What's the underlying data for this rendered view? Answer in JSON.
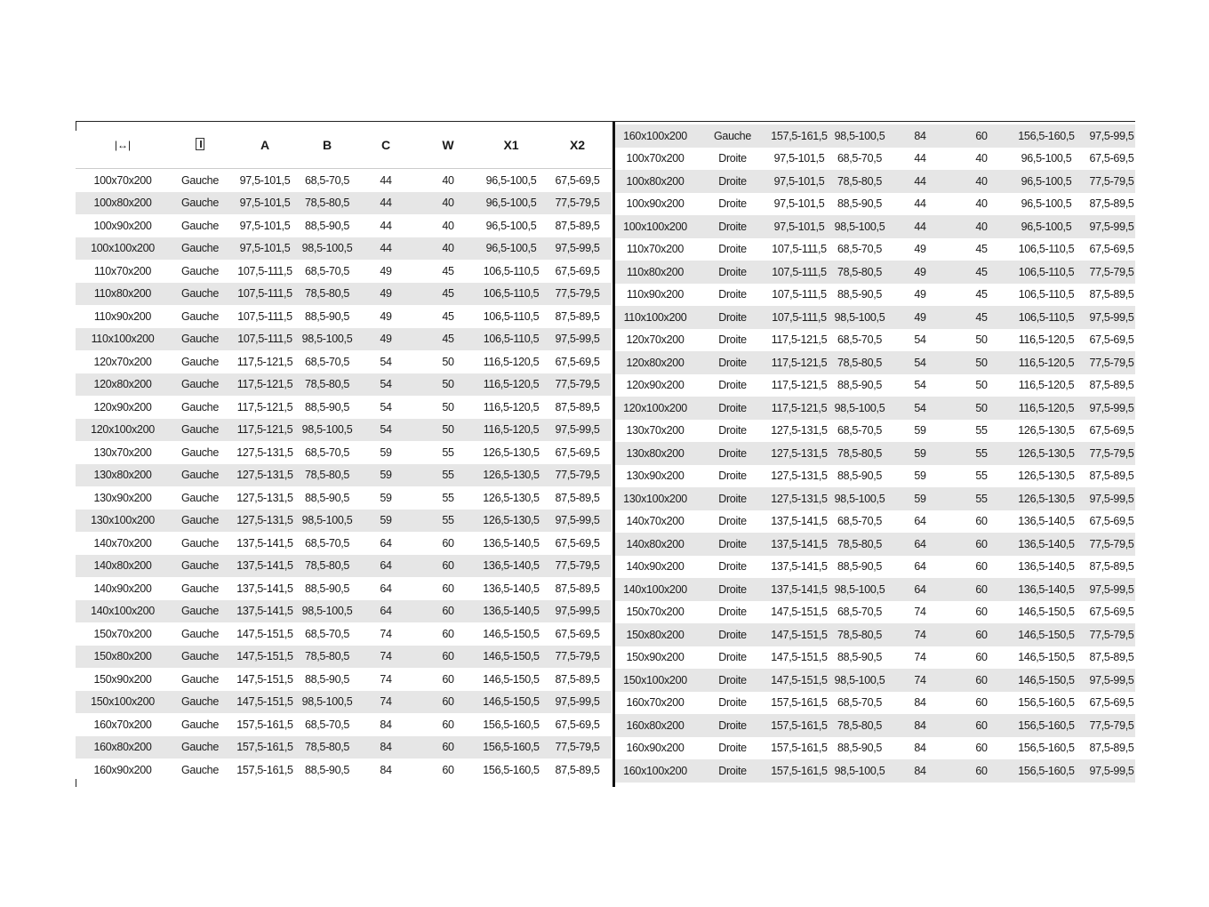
{
  "header": {
    "width_icon": "width-arrows-icon",
    "door_icon": "door-icon",
    "cols": [
      "A",
      "B",
      "C",
      "W",
      "X1",
      "X2"
    ]
  },
  "left_rows": [
    [
      "100x70x200",
      "Gauche",
      "97,5-101,5",
      "68,5-70,5",
      "44",
      "40",
      "96,5-100,5",
      "67,5-69,5"
    ],
    [
      "100x80x200",
      "Gauche",
      "97,5-101,5",
      "78,5-80,5",
      "44",
      "40",
      "96,5-100,5",
      "77,5-79,5"
    ],
    [
      "100x90x200",
      "Gauche",
      "97,5-101,5",
      "88,5-90,5",
      "44",
      "40",
      "96,5-100,5",
      "87,5-89,5"
    ],
    [
      "100x100x200",
      "Gauche",
      "97,5-101,5",
      "98,5-100,5",
      "44",
      "40",
      "96,5-100,5",
      "97,5-99,5"
    ],
    [
      "110x70x200",
      "Gauche",
      "107,5-111,5",
      "68,5-70,5",
      "49",
      "45",
      "106,5-110,5",
      "67,5-69,5"
    ],
    [
      "110x80x200",
      "Gauche",
      "107,5-111,5",
      "78,5-80,5",
      "49",
      "45",
      "106,5-110,5",
      "77,5-79,5"
    ],
    [
      "110x90x200",
      "Gauche",
      "107,5-111,5",
      "88,5-90,5",
      "49",
      "45",
      "106,5-110,5",
      "87,5-89,5"
    ],
    [
      "110x100x200",
      "Gauche",
      "107,5-111,5",
      "98,5-100,5",
      "49",
      "45",
      "106,5-110,5",
      "97,5-99,5"
    ],
    [
      "120x70x200",
      "Gauche",
      "117,5-121,5",
      "68,5-70,5",
      "54",
      "50",
      "116,5-120,5",
      "67,5-69,5"
    ],
    [
      "120x80x200",
      "Gauche",
      "117,5-121,5",
      "78,5-80,5",
      "54",
      "50",
      "116,5-120,5",
      "77,5-79,5"
    ],
    [
      "120x90x200",
      "Gauche",
      "117,5-121,5",
      "88,5-90,5",
      "54",
      "50",
      "116,5-120,5",
      "87,5-89,5"
    ],
    [
      "120x100x200",
      "Gauche",
      "117,5-121,5",
      "98,5-100,5",
      "54",
      "50",
      "116,5-120,5",
      "97,5-99,5"
    ],
    [
      "130x70x200",
      "Gauche",
      "127,5-131,5",
      "68,5-70,5",
      "59",
      "55",
      "126,5-130,5",
      "67,5-69,5"
    ],
    [
      "130x80x200",
      "Gauche",
      "127,5-131,5",
      "78,5-80,5",
      "59",
      "55",
      "126,5-130,5",
      "77,5-79,5"
    ],
    [
      "130x90x200",
      "Gauche",
      "127,5-131,5",
      "88,5-90,5",
      "59",
      "55",
      "126,5-130,5",
      "87,5-89,5"
    ],
    [
      "130x100x200",
      "Gauche",
      "127,5-131,5",
      "98,5-100,5",
      "59",
      "55",
      "126,5-130,5",
      "97,5-99,5"
    ],
    [
      "140x70x200",
      "Gauche",
      "137,5-141,5",
      "68,5-70,5",
      "64",
      "60",
      "136,5-140,5",
      "67,5-69,5"
    ],
    [
      "140x80x200",
      "Gauche",
      "137,5-141,5",
      "78,5-80,5",
      "64",
      "60",
      "136,5-140,5",
      "77,5-79,5"
    ],
    [
      "140x90x200",
      "Gauche",
      "137,5-141,5",
      "88,5-90,5",
      "64",
      "60",
      "136,5-140,5",
      "87,5-89,5"
    ],
    [
      "140x100x200",
      "Gauche",
      "137,5-141,5",
      "98,5-100,5",
      "64",
      "60",
      "136,5-140,5",
      "97,5-99,5"
    ],
    [
      "150x70x200",
      "Gauche",
      "147,5-151,5",
      "68,5-70,5",
      "74",
      "60",
      "146,5-150,5",
      "67,5-69,5"
    ],
    [
      "150x80x200",
      "Gauche",
      "147,5-151,5",
      "78,5-80,5",
      "74",
      "60",
      "146,5-150,5",
      "77,5-79,5"
    ],
    [
      "150x90x200",
      "Gauche",
      "147,5-151,5",
      "88,5-90,5",
      "74",
      "60",
      "146,5-150,5",
      "87,5-89,5"
    ],
    [
      "150x100x200",
      "Gauche",
      "147,5-151,5",
      "98,5-100,5",
      "74",
      "60",
      "146,5-150,5",
      "97,5-99,5"
    ],
    [
      "160x70x200",
      "Gauche",
      "157,5-161,5",
      "68,5-70,5",
      "84",
      "60",
      "156,5-160,5",
      "67,5-69,5"
    ],
    [
      "160x80x200",
      "Gauche",
      "157,5-161,5",
      "78,5-80,5",
      "84",
      "60",
      "156,5-160,5",
      "77,5-79,5"
    ],
    [
      "160x90x200",
      "Gauche",
      "157,5-161,5",
      "88,5-90,5",
      "84",
      "60",
      "156,5-160,5",
      "87,5-89,5"
    ]
  ],
  "right_rows": [
    [
      "160x100x200",
      "Gauche",
      "157,5-161,5",
      "98,5-100,5",
      "84",
      "60",
      "156,5-160,5",
      "97,5-99,5"
    ],
    [
      "100x70x200",
      "Droite",
      "97,5-101,5",
      "68,5-70,5",
      "44",
      "40",
      "96,5-100,5",
      "67,5-69,5"
    ],
    [
      "100x80x200",
      "Droite",
      "97,5-101,5",
      "78,5-80,5",
      "44",
      "40",
      "96,5-100,5",
      "77,5-79,5"
    ],
    [
      "100x90x200",
      "Droite",
      "97,5-101,5",
      "88,5-90,5",
      "44",
      "40",
      "96,5-100,5",
      "87,5-89,5"
    ],
    [
      "100x100x200",
      "Droite",
      "97,5-101,5",
      "98,5-100,5",
      "44",
      "40",
      "96,5-100,5",
      "97,5-99,5"
    ],
    [
      "110x70x200",
      "Droite",
      "107,5-111,5",
      "68,5-70,5",
      "49",
      "45",
      "106,5-110,5",
      "67,5-69,5"
    ],
    [
      "110x80x200",
      "Droite",
      "107,5-111,5",
      "78,5-80,5",
      "49",
      "45",
      "106,5-110,5",
      "77,5-79,5"
    ],
    [
      "110x90x200",
      "Droite",
      "107,5-111,5",
      "88,5-90,5",
      "49",
      "45",
      "106,5-110,5",
      "87,5-89,5"
    ],
    [
      "110x100x200",
      "Droite",
      "107,5-111,5",
      "98,5-100,5",
      "49",
      "45",
      "106,5-110,5",
      "97,5-99,5"
    ],
    [
      "120x70x200",
      "Droite",
      "117,5-121,5",
      "68,5-70,5",
      "54",
      "50",
      "116,5-120,5",
      "67,5-69,5"
    ],
    [
      "120x80x200",
      "Droite",
      "117,5-121,5",
      "78,5-80,5",
      "54",
      "50",
      "116,5-120,5",
      "77,5-79,5"
    ],
    [
      "120x90x200",
      "Droite",
      "117,5-121,5",
      "88,5-90,5",
      "54",
      "50",
      "116,5-120,5",
      "87,5-89,5"
    ],
    [
      "120x100x200",
      "Droite",
      "117,5-121,5",
      "98,5-100,5",
      "54",
      "50",
      "116,5-120,5",
      "97,5-99,5"
    ],
    [
      "130x70x200",
      "Droite",
      "127,5-131,5",
      "68,5-70,5",
      "59",
      "55",
      "126,5-130,5",
      "67,5-69,5"
    ],
    [
      "130x80x200",
      "Droite",
      "127,5-131,5",
      "78,5-80,5",
      "59",
      "55",
      "126,5-130,5",
      "77,5-79,5"
    ],
    [
      "130x90x200",
      "Droite",
      "127,5-131,5",
      "88,5-90,5",
      "59",
      "55",
      "126,5-130,5",
      "87,5-89,5"
    ],
    [
      "130x100x200",
      "Droite",
      "127,5-131,5",
      "98,5-100,5",
      "59",
      "55",
      "126,5-130,5",
      "97,5-99,5"
    ],
    [
      "140x70x200",
      "Droite",
      "137,5-141,5",
      "68,5-70,5",
      "64",
      "60",
      "136,5-140,5",
      "67,5-69,5"
    ],
    [
      "140x80x200",
      "Droite",
      "137,5-141,5",
      "78,5-80,5",
      "64",
      "60",
      "136,5-140,5",
      "77,5-79,5"
    ],
    [
      "140x90x200",
      "Droite",
      "137,5-141,5",
      "88,5-90,5",
      "64",
      "60",
      "136,5-140,5",
      "87,5-89,5"
    ],
    [
      "140x100x200",
      "Droite",
      "137,5-141,5",
      "98,5-100,5",
      "64",
      "60",
      "136,5-140,5",
      "97,5-99,5"
    ],
    [
      "150x70x200",
      "Droite",
      "147,5-151,5",
      "68,5-70,5",
      "74",
      "60",
      "146,5-150,5",
      "67,5-69,5"
    ],
    [
      "150x80x200",
      "Droite",
      "147,5-151,5",
      "78,5-80,5",
      "74",
      "60",
      "146,5-150,5",
      "77,5-79,5"
    ],
    [
      "150x90x200",
      "Droite",
      "147,5-151,5",
      "88,5-90,5",
      "74",
      "60",
      "146,5-150,5",
      "87,5-89,5"
    ],
    [
      "150x100x200",
      "Droite",
      "147,5-151,5",
      "98,5-100,5",
      "74",
      "60",
      "146,5-150,5",
      "97,5-99,5"
    ],
    [
      "160x70x200",
      "Droite",
      "157,5-161,5",
      "68,5-70,5",
      "84",
      "60",
      "156,5-160,5",
      "67,5-69,5"
    ],
    [
      "160x80x200",
      "Droite",
      "157,5-161,5",
      "78,5-80,5",
      "84",
      "60",
      "156,5-160,5",
      "77,5-79,5"
    ],
    [
      "160x90x200",
      "Droite",
      "157,5-161,5",
      "88,5-90,5",
      "84",
      "60",
      "156,5-160,5",
      "87,5-89,5"
    ],
    [
      "160x100x200",
      "Droite",
      "157,5-161,5",
      "98,5-100,5",
      "84",
      "60",
      "156,5-160,5",
      "97,5-99,5"
    ]
  ]
}
